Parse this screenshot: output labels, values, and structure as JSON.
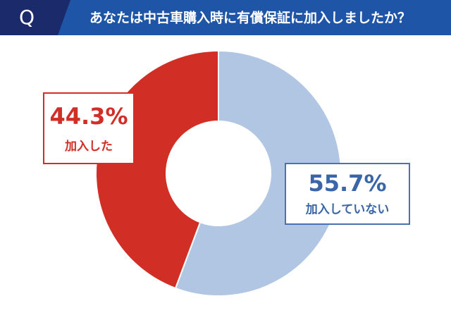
{
  "chart_data": {
    "type": "donut",
    "question_label": "Q",
    "title": "あなたは中古車購入時に有償保証に加入しましたか？",
    "categories": [
      "加入していない",
      "加入した"
    ],
    "values": [
      55.7,
      44.3
    ],
    "value_labels": [
      "55.7%",
      "44.3%"
    ],
    "colors": [
      "#b1c6e3",
      "#d12f25"
    ]
  }
}
